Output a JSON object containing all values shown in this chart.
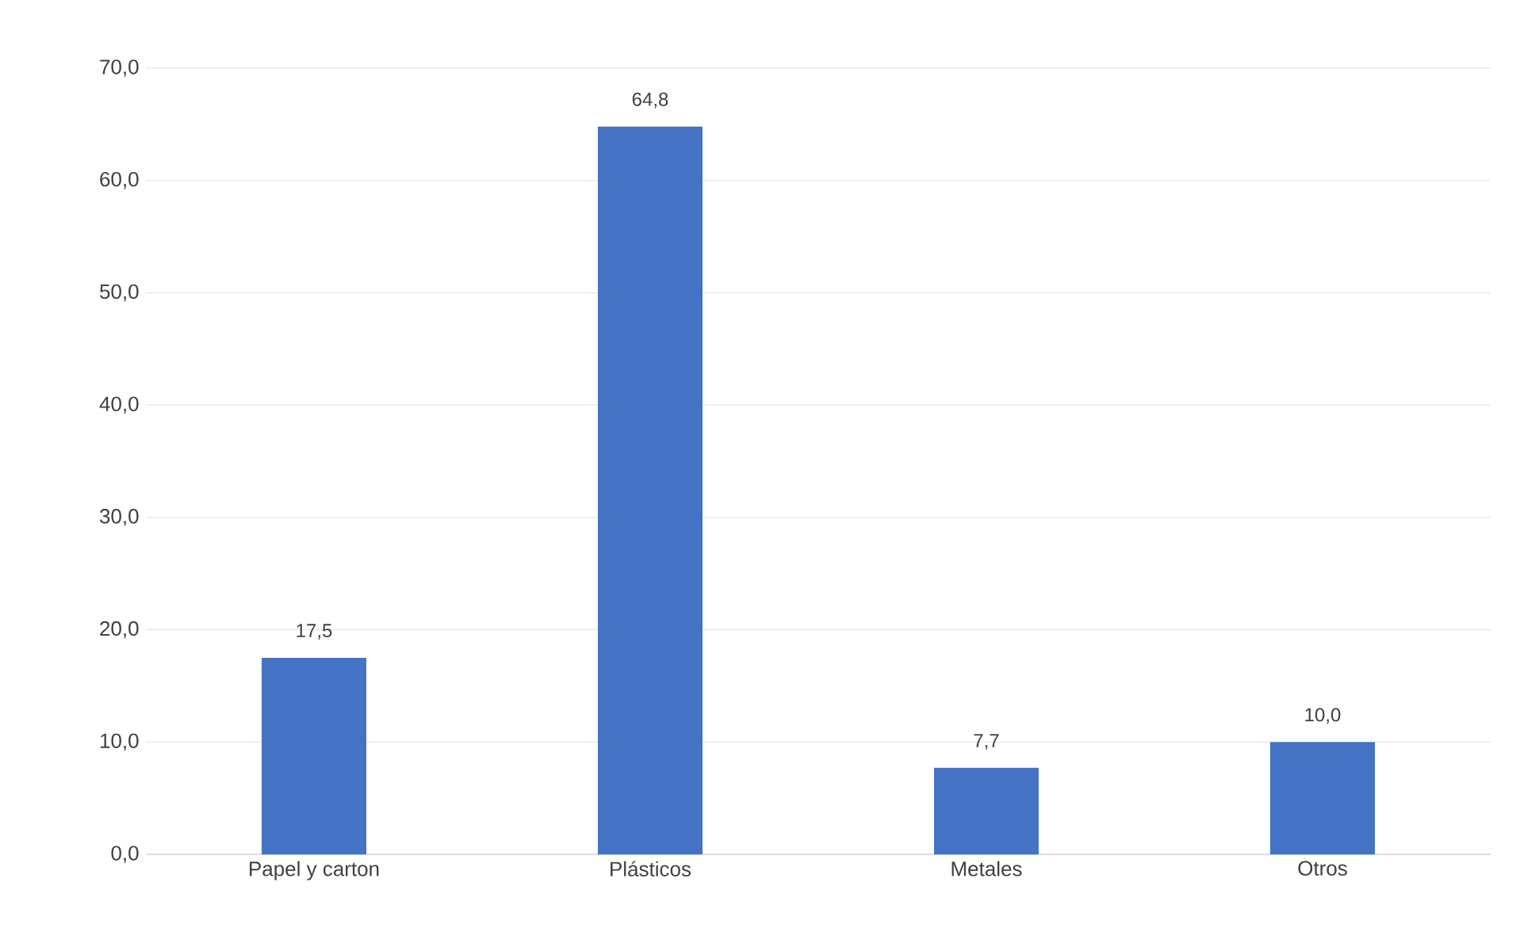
{
  "chart_data": {
    "type": "bar",
    "categories": [
      "Papel y carton",
      "Plásticos",
      "Metales",
      "Otros"
    ],
    "values": [
      17.5,
      64.8,
      7.7,
      10.0
    ],
    "value_labels": [
      "17,5",
      "64,8",
      "7,7",
      "10,0"
    ],
    "color": "#4472c4",
    "ylim": [
      0,
      70
    ],
    "yticks": [
      {
        "value": 0,
        "label": "0,0"
      },
      {
        "value": 10,
        "label": "10,0"
      },
      {
        "value": 20,
        "label": "20,0"
      },
      {
        "value": 30,
        "label": "30,0"
      },
      {
        "value": 40,
        "label": "40,0"
      },
      {
        "value": 50,
        "label": "50,0"
      },
      {
        "value": 60,
        "label": "60,0"
      },
      {
        "value": 70,
        "label": "70,0"
      }
    ],
    "grid": "y"
  }
}
